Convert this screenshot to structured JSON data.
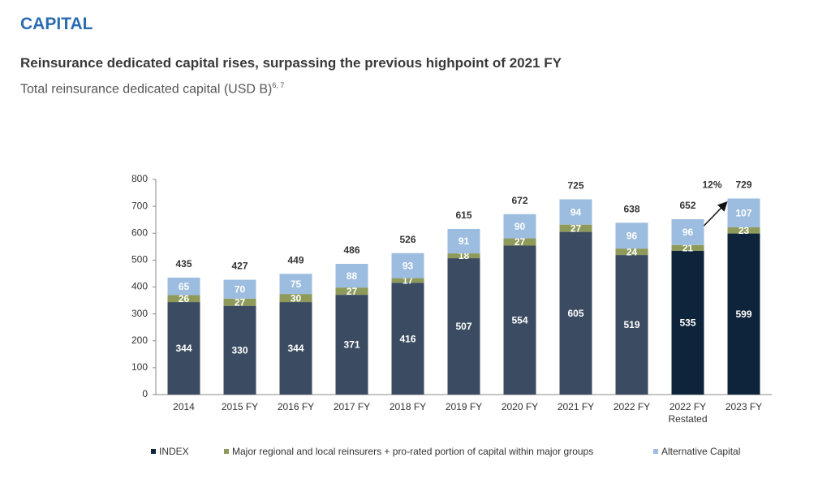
{
  "header": {
    "section": "CAPITAL",
    "title": "Reinsurance dedicated capital rises, surpassing the previous highpoint of 2021 FY",
    "subtitle": "Total reinsurance dedicated capital (USD B)",
    "subtitle_sup": "6, 7"
  },
  "chart_data": {
    "type": "stacked_bar",
    "categories": [
      "2014",
      "2015 FY",
      "2016 FY",
      "2017 FY",
      "2018 FY",
      "2019 FY",
      "2020 FY",
      "2021 FY",
      "2022 FY",
      "2022 FY Restated",
      "2023 FY"
    ],
    "series": [
      {
        "name": "INDEX",
        "color": "#0e243a",
        "colors": [
          "#3b4c62",
          "#3b4c62",
          "#3b4c62",
          "#3b4c62",
          "#3b4c62",
          "#3b4c62",
          "#3b4c62",
          "#3b4c62",
          "#3b4c62",
          "#0e243a",
          "#0e243a"
        ],
        "values": [
          344,
          330,
          344,
          371,
          416,
          507,
          554,
          605,
          519,
          535,
          599
        ]
      },
      {
        "name": "Major regional and local reinsurers + pro-rated portion of capital within major groups",
        "color": "#8e9a5a",
        "values": [
          26,
          27,
          30,
          27,
          17,
          18,
          27,
          27,
          24,
          21,
          23
        ]
      },
      {
        "name": "Alternative Capital",
        "color": "#9dbde0",
        "values": [
          65,
          70,
          75,
          88,
          93,
          91,
          90,
          94,
          96,
          96,
          107
        ]
      }
    ],
    "totals": [
      435,
      427,
      449,
      486,
      526,
      615,
      672,
      725,
      638,
      652,
      729
    ],
    "annotation": "12%",
    "ylim": [
      0,
      800
    ],
    "yticks": [
      0,
      100,
      200,
      300,
      400,
      500,
      600,
      700,
      800
    ]
  }
}
